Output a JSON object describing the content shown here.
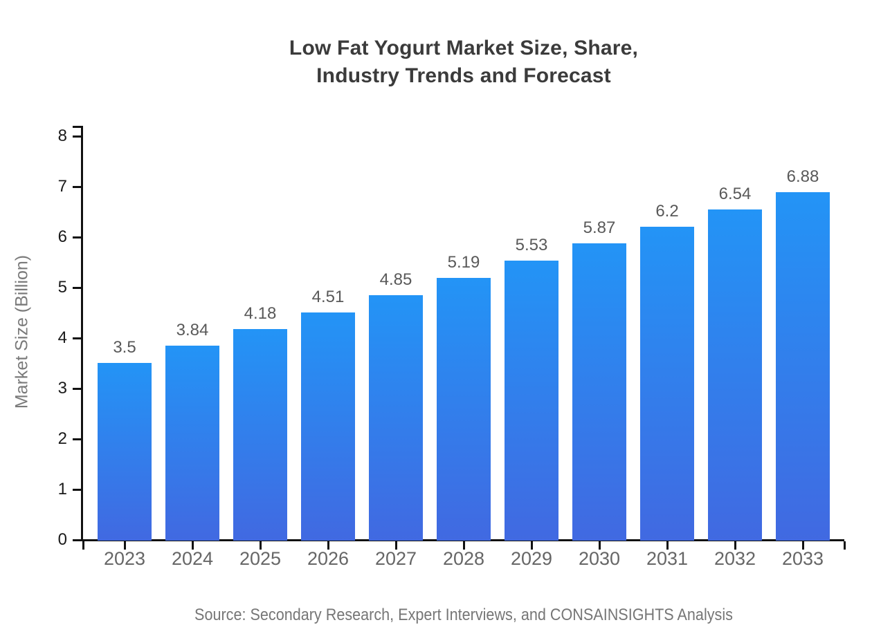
{
  "chart_data": {
    "type": "bar",
    "title_lines": [
      "Low Fat Yogurt Market Size, Share,",
      "Industry Trends and Forecast"
    ],
    "ylabel": "Market Size (Billion)",
    "xlabel": "",
    "categories": [
      "2023",
      "2024",
      "2025",
      "2026",
      "2027",
      "2028",
      "2029",
      "2030",
      "2031",
      "2032",
      "2033"
    ],
    "values": [
      3.5,
      3.84,
      4.18,
      4.51,
      4.85,
      5.19,
      5.53,
      5.87,
      6.2,
      6.54,
      6.88
    ],
    "value_labels": [
      "3.5",
      "3.84",
      "4.18",
      "4.51",
      "4.85",
      "5.19",
      "5.53",
      "5.87",
      "6.2",
      "6.54",
      "6.88"
    ],
    "yticks": [
      0,
      1,
      2,
      3,
      4,
      5,
      6,
      7,
      8
    ],
    "ylim": [
      0,
      8.2
    ],
    "grid": "off",
    "legend": "none",
    "source": "Source: Secondary Research, Expert Interviews, and CONSAINSIGHTS Analysis",
    "colors": {
      "bar_gradient_top": "#2394f6",
      "bar_gradient_bottom": "#4169e1",
      "axis": "#111111",
      "title_text": "#3b3b3b",
      "x_tick_text": "#666666",
      "y_tick_text": "#1a1a1a",
      "value_label_text": "#595959",
      "y_axis_title_text": "#7a7a7a",
      "source_text": "#767676",
      "background": "#ffffff"
    }
  }
}
